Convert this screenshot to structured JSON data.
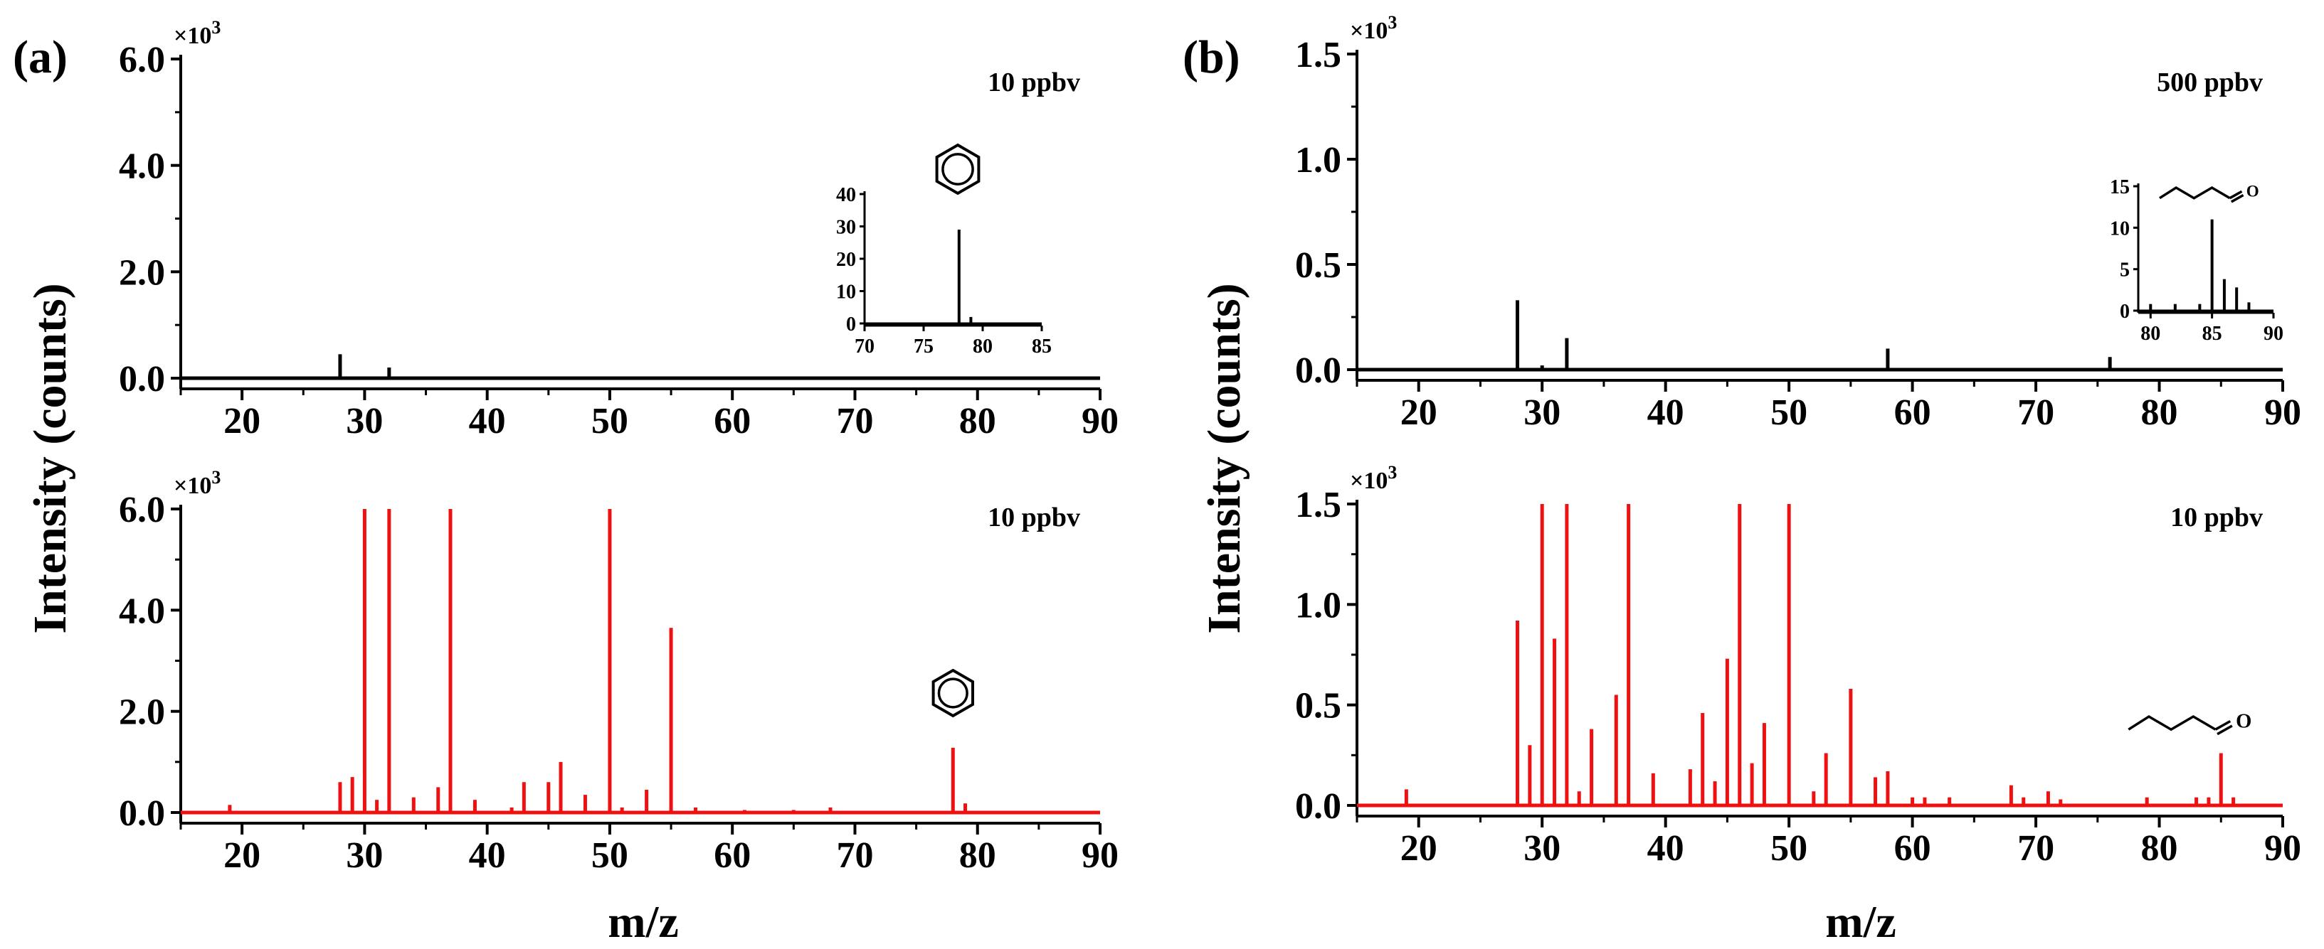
{
  "figure": {
    "shared": {
      "ylabel": "Intensity (counts)",
      "xlabel": "m/z",
      "ticks": {
        "x_major": [
          20,
          30,
          40,
          50,
          60,
          70,
          80,
          90
        ]
      }
    },
    "colors": {
      "black": "#000000",
      "red": "#ee1111"
    }
  },
  "chart_data": [
    {
      "id": "a-top",
      "panel_label": "(a)",
      "type": "bar",
      "title": "",
      "annotation": "10 ppbv",
      "xlim": [
        15,
        90
      ],
      "ylim": [
        0,
        6.0
      ],
      "yticks": [
        "0.0",
        "2.0",
        "4.0",
        "6.0"
      ],
      "ytick_values": [
        0,
        2,
        4,
        6
      ],
      "multiplier_base": "×10",
      "multiplier_exp": "3",
      "color": "#000000",
      "x": [
        28,
        32
      ],
      "values": [
        0.45,
        0.2
      ],
      "xlabel": "",
      "ylabel": "Intensity (counts)",
      "inset": {
        "type": "bar",
        "xlim": [
          70,
          85
        ],
        "ylim": [
          0,
          40
        ],
        "xticks": [
          "70",
          "75",
          "80",
          "85"
        ],
        "xtick_values": [
          70,
          75,
          80,
          85
        ],
        "yticks": [
          "0",
          "10",
          "20",
          "30",
          "40"
        ],
        "ytick_values": [
          0,
          10,
          20,
          30,
          40
        ],
        "x": [
          78,
          79
        ],
        "values": [
          29,
          2
        ],
        "molecule": "benzene"
      }
    },
    {
      "id": "a-bottom",
      "panel_label": "",
      "type": "bar",
      "annotation": "10 ppbv",
      "xlim": [
        15,
        90
      ],
      "ylim": [
        0,
        6.0
      ],
      "yticks": [
        "0.0",
        "2.0",
        "4.0",
        "6.0"
      ],
      "ytick_values": [
        0,
        2,
        4,
        6
      ],
      "multiplier_base": "×10",
      "multiplier_exp": "3",
      "color": "#ee1111",
      "molecule": "benzene",
      "molecule_x": 78,
      "x": [
        19,
        28,
        29,
        30,
        31,
        32,
        34,
        36,
        37,
        39,
        42,
        43,
        45,
        46,
        48,
        50,
        51,
        53,
        55,
        57,
        61,
        65,
        68,
        78,
        79
      ],
      "values": [
        0.15,
        0.6,
        0.7,
        6.0,
        0.25,
        6.0,
        0.3,
        0.5,
        6.0,
        0.25,
        0.1,
        0.6,
        0.6,
        1.0,
        0.35,
        6.0,
        0.1,
        0.45,
        3.65,
        0.1,
        0.05,
        0.05,
        0.1,
        1.28,
        0.18
      ],
      "xlabel": "m/z",
      "ylabel": "Intensity (counts)"
    },
    {
      "id": "b-top",
      "panel_label": "(b)",
      "type": "bar",
      "annotation": "500 ppbv",
      "xlim": [
        15,
        90
      ],
      "ylim": [
        0,
        1.5
      ],
      "yticks": [
        "0.0",
        "0.5",
        "1.0",
        "1.5"
      ],
      "ytick_values": [
        0,
        0.5,
        1.0,
        1.5
      ],
      "multiplier_base": "×10",
      "multiplier_exp": "3",
      "color": "#000000",
      "x": [
        28,
        30,
        32,
        58,
        76
      ],
      "values": [
        0.33,
        0.02,
        0.15,
        0.1,
        0.06
      ],
      "xlabel": "",
      "ylabel": "Intensity (counts)",
      "inset": {
        "type": "bar",
        "xlim": [
          79,
          90
        ],
        "ylim": [
          0,
          15
        ],
        "xticks": [
          "80",
          "85",
          "90"
        ],
        "xtick_values": [
          80,
          85,
          90
        ],
        "yticks": [
          "0",
          "5",
          "10",
          "15"
        ],
        "ytick_values": [
          0,
          5,
          10,
          15
        ],
        "x": [
          80,
          82,
          84,
          85,
          86,
          87,
          88
        ],
        "values": [
          0.8,
          0.8,
          0.8,
          11,
          3.8,
          2.8,
          1.0
        ],
        "molecule": "pentanal"
      }
    },
    {
      "id": "b-bottom",
      "panel_label": "",
      "type": "bar",
      "annotation": "10 ppbv",
      "xlim": [
        15,
        90
      ],
      "ylim": [
        0,
        1.5
      ],
      "yticks": [
        "0.0",
        "0.5",
        "1.0",
        "1.5"
      ],
      "ytick_values": [
        0,
        0.5,
        1.0,
        1.5
      ],
      "multiplier_base": "×10",
      "multiplier_exp": "3",
      "color": "#ee1111",
      "molecule": "pentanal",
      "molecule_x": 85,
      "x": [
        19,
        28,
        29,
        30,
        31,
        32,
        33,
        34,
        36,
        37,
        39,
        42,
        43,
        44,
        45,
        46,
        47,
        48,
        50,
        52,
        53,
        55,
        57,
        58,
        60,
        61,
        63,
        68,
        69,
        71,
        72,
        79,
        83,
        84,
        85,
        86
      ],
      "values": [
        0.08,
        0.92,
        0.3,
        1.5,
        0.83,
        1.5,
        0.07,
        0.38,
        0.55,
        1.5,
        0.16,
        0.18,
        0.46,
        0.12,
        0.73,
        1.5,
        0.21,
        0.41,
        1.5,
        0.07,
        0.26,
        0.58,
        0.14,
        0.17,
        0.04,
        0.04,
        0.04,
        0.1,
        0.04,
        0.07,
        0.03,
        0.04,
        0.04,
        0.04,
        0.26,
        0.04
      ],
      "xlabel": "m/z",
      "ylabel": "Intensity (counts)"
    }
  ]
}
